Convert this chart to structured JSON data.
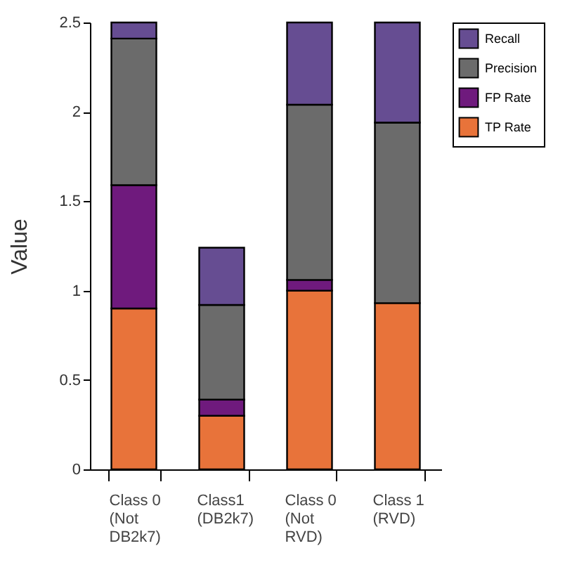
{
  "chart_data": {
    "type": "bar",
    "stacked": true,
    "ylabel": "Value",
    "categories": [
      "Class 0 (Not DB2k7)",
      "Class1 (DB2k7)",
      "Class 0 (Not RVD)",
      "Class 1 (RVD)"
    ],
    "series": [
      {
        "name": "TP Rate",
        "color": "#e8733a",
        "values": [
          0.9,
          0.3,
          1.0,
          0.93
        ]
      },
      {
        "name": "FP Rate",
        "color": "#6f1a7d",
        "values": [
          0.69,
          0.09,
          0.06,
          null
        ]
      },
      {
        "name": "Precision",
        "color": "#6b6b6b",
        "values": [
          0.82,
          0.53,
          0.98,
          1.01
        ]
      },
      {
        "name": "Recall",
        "color": "#664d92",
        "values": [
          0.09,
          0.32,
          0.46,
          0.56
        ]
      }
    ],
    "ylim": [
      0,
      2.5
    ],
    "yticks": [
      0,
      0.5,
      1,
      1.5,
      2,
      2.5
    ],
    "grid": false,
    "legend": "right"
  }
}
